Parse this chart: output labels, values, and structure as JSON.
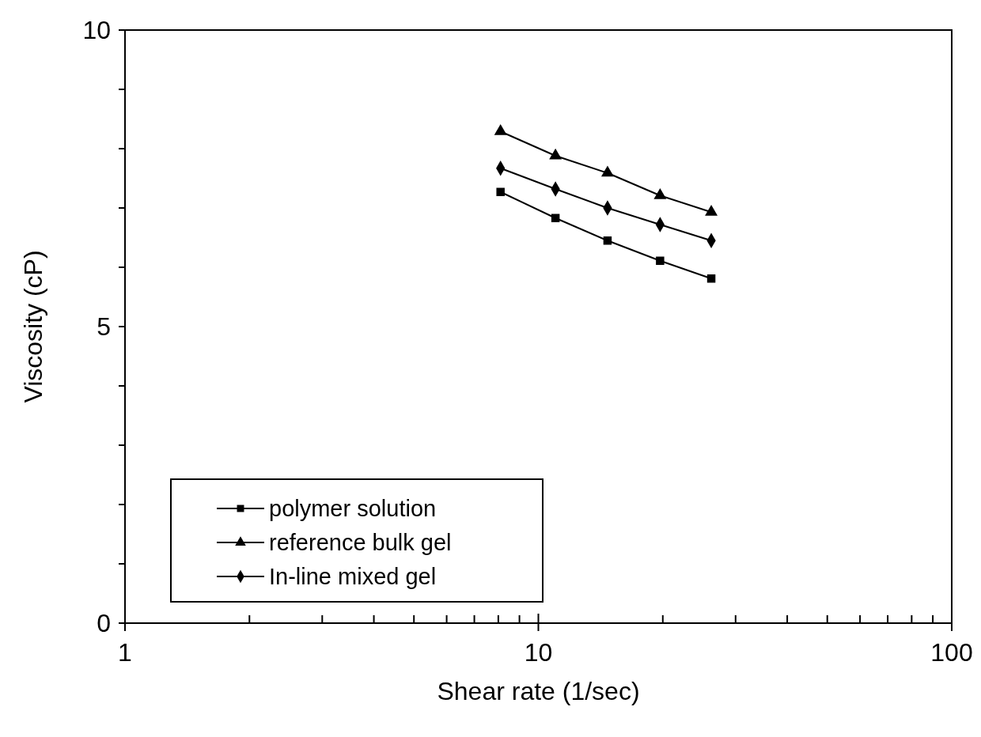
{
  "chart_data": {
    "type": "line",
    "xlabel": "Shear rate (1/sec)",
    "ylabel": "Viscosity (cP)",
    "log": "x",
    "xlim": [
      1,
      100
    ],
    "xticks": [
      1,
      {
        "value": 2,
        "label": null
      },
      {
        "value": 3,
        "label": null
      },
      {
        "value": 4,
        "label": null
      },
      {
        "value": 5,
        "label": null
      },
      {
        "value": 6,
        "label": null
      },
      {
        "value": 7,
        "label": null
      },
      {
        "value": 8,
        "label": null
      },
      {
        "value": 9,
        "label": null
      },
      10,
      {
        "value": 20,
        "label": null
      },
      {
        "value": 30,
        "label": null
      },
      {
        "value": 40,
        "label": null
      },
      {
        "value": 50,
        "label": null
      },
      {
        "value": 60,
        "label": null
      },
      {
        "value": 70,
        "label": null
      },
      {
        "value": 80,
        "label": null
      },
      {
        "value": 90,
        "label": null
      },
      100
    ],
    "ylim": [
      0,
      10
    ],
    "yticks": [
      0,
      {
        "value": 1,
        "label": null
      },
      {
        "value": 2,
        "label": null
      },
      {
        "value": 3,
        "label": null
      },
      {
        "value": 4,
        "label": null
      },
      5,
      {
        "value": 6,
        "label": null
      },
      {
        "value": 7,
        "label": null
      },
      {
        "value": 8,
        "label": null
      },
      {
        "value": 9,
        "label": null
      },
      10
    ],
    "grid": false,
    "legend": "bottom left",
    "line_style": "solid",
    "x": [
      8.1,
      11,
      14.7,
      19.7,
      26.2
    ],
    "series": [
      {
        "name": "polymer solution",
        "color": "#000000",
        "marker": "square",
        "values": [
          7.27,
          6.83,
          6.45,
          6.11,
          5.81
        ]
      },
      {
        "name": "reference bulk gel",
        "color": "#000000",
        "marker": "triangle",
        "values": [
          8.29,
          7.88,
          7.59,
          7.21,
          6.93
        ]
      },
      {
        "name": "In-line mixed gel",
        "color": "#000000",
        "marker": "diamond",
        "values": [
          7.67,
          7.32,
          7.0,
          6.72,
          6.45
        ]
      }
    ]
  }
}
